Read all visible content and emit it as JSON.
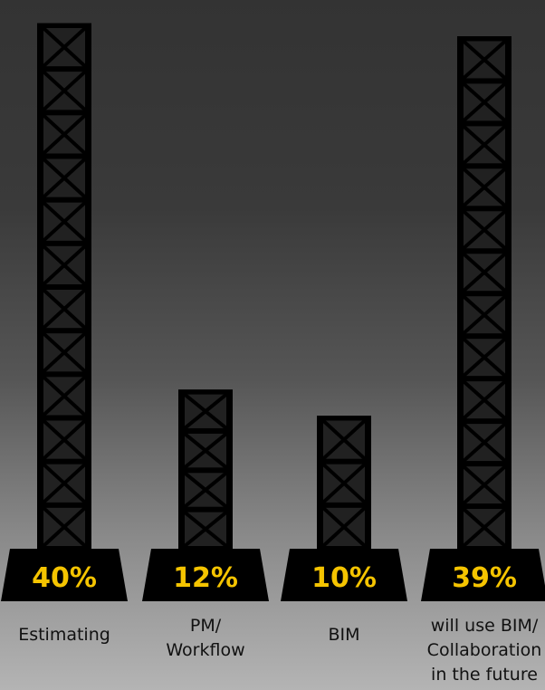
{
  "chart_data": {
    "type": "bar",
    "categories": [
      "Estimating",
      "PM/\nWorkflow",
      "BIM",
      "will use BIM/\nCollaboration\nin the future"
    ],
    "values": [
      40,
      12,
      10,
      39
    ],
    "value_labels": [
      "40%",
      "12%",
      "10%",
      "39%"
    ],
    "title": "",
    "xlabel": "",
    "ylabel": "",
    "ylim": [
      0,
      41.5
    ],
    "unit": "%",
    "grid": false,
    "legend": "none"
  },
  "colors": {
    "tower": "#000000",
    "value_label": "#f5c400",
    "category_label": "#111111"
  },
  "icons": {
    "bar": "lattice-tower-icon"
  }
}
